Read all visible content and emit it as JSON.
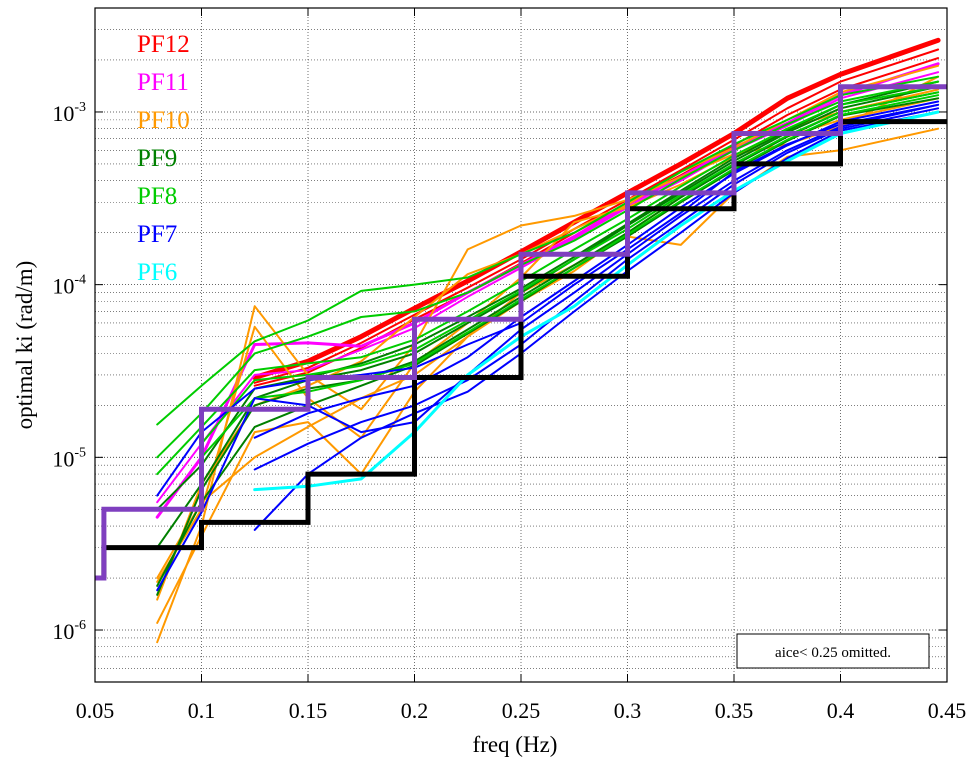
{
  "chart_data": {
    "type": "line",
    "title": "",
    "xlabel": "freq (Hz)",
    "ylabel": "optimal ki (rad/m)",
    "x_scale": "linear",
    "y_scale": "log",
    "xlim": [
      0.05,
      0.45
    ],
    "ylim": [
      5e-07,
      0.004
    ],
    "grid": true,
    "x_ticks": [
      0.05,
      0.1,
      0.15,
      0.2,
      0.25,
      0.3,
      0.35,
      0.4,
      0.45
    ],
    "x_tick_labels": [
      "0.05",
      "0.1",
      "0.15",
      "0.2",
      "0.25",
      "0.3",
      "0.35",
      "0.4",
      "0.45"
    ],
    "y_ticks": [
      1e-06,
      1e-05,
      0.0001,
      0.001
    ],
    "y_tick_labels": [
      {
        "base": "10",
        "exp": "-6"
      },
      {
        "base": "10",
        "exp": "-5"
      },
      {
        "base": "10",
        "exp": "-4"
      },
      {
        "base": "10",
        "exp": "-3"
      }
    ],
    "legend_position": "top-left",
    "legend": [
      {
        "label": "PF12",
        "color": "#ff0000"
      },
      {
        "label": "PF11",
        "color": "#ff00ff"
      },
      {
        "label": "PF10",
        "color": "#ff9900"
      },
      {
        "label": "PF9",
        "color": "#008000"
      },
      {
        "label": "PF8",
        "color": "#00cc00"
      },
      {
        "label": "PF7",
        "color": "#0000ff"
      },
      {
        "label": "PF6",
        "color": "#00ffff"
      }
    ],
    "annotation": "aice< 0.25 omitted.",
    "x": [
      0.0792,
      0.1,
      0.125,
      0.15,
      0.175,
      0.2,
      0.225,
      0.25,
      0.275,
      0.3,
      0.325,
      0.35,
      0.375,
      0.4,
      0.4458
    ],
    "series": [
      {
        "color": "#ff0000",
        "width": 5,
        "values": [
          null,
          null,
          2.9e-05,
          3.6e-05,
          5e-05,
          7.3e-05,
          0.000105,
          0.000155,
          0.00023,
          0.00034,
          0.0005,
          0.00075,
          0.0012,
          0.00165,
          0.0026
        ]
      },
      {
        "color": "#ff0000",
        "width": 2,
        "values": [
          null,
          null,
          2.7e-05,
          3.3e-05,
          4.6e-05,
          6.7e-05,
          9.6e-05,
          0.00014,
          0.00021,
          0.00031,
          0.00046,
          0.00069,
          0.00105,
          0.0015,
          0.0023
        ]
      },
      {
        "color": "#ff0000",
        "width": 2,
        "values": [
          null,
          null,
          2.6e-05,
          3.1e-05,
          4.3e-05,
          6.3e-05,
          9e-05,
          0.000133,
          0.0002,
          0.000295,
          0.00043,
          0.00064,
          0.00096,
          0.00135,
          0.00205
        ]
      },
      {
        "color": "#ff00ff",
        "width": 3,
        "values": [
          4.5e-06,
          1e-05,
          4.5e-05,
          4.6e-05,
          4.4e-05,
          6e-05,
          9e-05,
          0.00013,
          0.00019,
          0.00029,
          0.00042,
          0.00062,
          0.00086,
          0.00125,
          0.0019
        ]
      },
      {
        "color": "#ff00ff",
        "width": 2,
        "values": [
          5.5e-06,
          1.2e-05,
          3e-05,
          3.2e-05,
          4.2e-05,
          5.6e-05,
          8.5e-05,
          0.000125,
          0.000185,
          0.00028,
          0.0004,
          0.0006,
          0.00083,
          0.0012,
          0.0017
        ]
      },
      {
        "color": "#ff9900",
        "width": 2,
        "values": [
          8.5e-07,
          4e-06,
          7.5e-05,
          3e-05,
          1.9e-05,
          4.5e-05,
          0.00016,
          0.00022,
          0.00025,
          0.00031,
          0.00042,
          0.00057,
          0.00065,
          0.00082,
          0.0016
        ]
      },
      {
        "color": "#ff9900",
        "width": 2,
        "values": [
          1.9e-06,
          5e-06,
          5.7e-05,
          2.2e-05,
          1.3e-05,
          3.5e-05,
          6e-05,
          0.00011,
          0.00023,
          0.00028,
          0.00038,
          0.00055,
          0.0008,
          0.001,
          0.00135
        ]
      },
      {
        "color": "#ff9900",
        "width": 2,
        "values": [
          1.1e-06,
          3.5e-06,
          1.4e-05,
          1.6e-05,
          8e-06,
          2.4e-05,
          5e-05,
          9e-05,
          0.00013,
          0.00019,
          0.00017,
          0.00034,
          0.00055,
          0.0006,
          0.0008
        ]
      },
      {
        "color": "#ff9900",
        "width": 2,
        "values": [
          1.5e-06,
          7e-06,
          2e-05,
          2.6e-05,
          3.6e-05,
          6.5e-05,
          0.000115,
          0.00015,
          0.00021,
          0.00029,
          0.00045,
          0.00062,
          0.0009,
          0.0013,
          0.00185
        ]
      },
      {
        "color": "#ff9900",
        "width": 2,
        "values": [
          2e-06,
          5.5e-06,
          1e-05,
          1.5e-05,
          2.2e-05,
          3e-05,
          5e-05,
          8e-05,
          0.00012,
          0.0002,
          0.00032,
          0.0005,
          0.00072,
          0.0009,
          0.0012
        ]
      },
      {
        "color": "#008000",
        "width": 2,
        "values": [
          1.6e-06,
          6.5e-06,
          2e-05,
          2.5e-05,
          2.8e-05,
          3.6e-05,
          5.5e-05,
          8.5e-05,
          0.00013,
          0.0002,
          0.00032,
          0.00049,
          0.00072,
          0.001,
          0.0013
        ]
      },
      {
        "color": "#008000",
        "width": 2,
        "values": [
          1.8e-06,
          5.5e-06,
          1.5e-05,
          2e-05,
          2.6e-05,
          3.4e-05,
          5.2e-05,
          8e-05,
          0.000125,
          0.00019,
          0.0003,
          0.00046,
          0.00068,
          0.00095,
          0.0012
        ]
      },
      {
        "color": "#008000",
        "width": 2,
        "values": [
          3e-06,
          7e-06,
          2.2e-05,
          2.8e-05,
          3.2e-05,
          4e-05,
          6e-05,
          9e-05,
          0.00014,
          0.00022,
          0.00034,
          0.00052,
          0.00076,
          0.00105,
          0.0014
        ]
      },
      {
        "color": "#008000",
        "width": 2,
        "values": [
          5e-06,
          9e-06,
          2.5e-05,
          2.9e-05,
          3.5e-05,
          4.5e-05,
          6.5e-05,
          9.5e-05,
          0.000145,
          0.000225,
          0.00035,
          0.00054,
          0.00078,
          0.0011,
          0.0015
        ]
      },
      {
        "color": "#00cc00",
        "width": 2,
        "values": [
          1.55e-05,
          2.6e-05,
          4.7e-05,
          6.2e-05,
          9.2e-05,
          0.0001,
          0.00011,
          0.00015,
          0.0002,
          0.0003,
          0.00045,
          0.00065,
          0.0009,
          0.00125,
          0.0016
        ]
      },
      {
        "color": "#00cc00",
        "width": 2,
        "values": [
          1e-05,
          1.8e-05,
          4e-05,
          5e-05,
          6.5e-05,
          7e-05,
          9e-05,
          0.00013,
          0.00018,
          0.00027,
          0.00041,
          0.0006,
          0.00085,
          0.00115,
          0.0015
        ]
      },
      {
        "color": "#00cc00",
        "width": 2,
        "values": [
          8e-06,
          1.5e-05,
          3.2e-05,
          3.5e-05,
          3.8e-05,
          4.8e-05,
          7e-05,
          0.000105,
          0.00016,
          0.00024,
          0.00037,
          0.00056,
          0.0008,
          0.0011,
          0.0014
        ]
      },
      {
        "color": "#00cc00",
        "width": 2,
        "values": [
          null,
          1.2e-05,
          2.8e-05,
          3e-05,
          3.4e-05,
          4.2e-05,
          6.2e-05,
          9.2e-05,
          0.00014,
          0.00021,
          0.00033,
          0.0005,
          0.00073,
          0.001,
          0.0013
        ]
      },
      {
        "color": "#00cc00",
        "width": 2,
        "values": [
          null,
          1e-05,
          2.2e-05,
          2.4e-05,
          2.8e-05,
          3.5e-05,
          5.3e-05,
          8.2e-05,
          0.000125,
          0.000195,
          0.000305,
          0.00047,
          0.00069,
          0.00096,
          0.00125
        ]
      },
      {
        "color": "#0000ff",
        "width": 2,
        "values": [
          6e-06,
          1.4e-05,
          2.5e-05,
          2.8e-05,
          3e-05,
          3.3e-05,
          4.5e-05,
          6e-05,
          0.0001,
          0.00016,
          0.00026,
          0.00045,
          0.00065,
          0.00085,
          0.0011
        ]
      },
      {
        "color": "#0000ff",
        "width": 2,
        "values": [
          null,
          null,
          1.3e-05,
          1.8e-05,
          2.2e-05,
          2.6e-05,
          3.8e-05,
          6.5e-05,
          0.000105,
          0.00017,
          0.00028,
          0.00044,
          0.00064,
          0.00088,
          0.00115
        ]
      },
      {
        "color": "#0000ff",
        "width": 2,
        "values": [
          null,
          null,
          8.5e-06,
          1.2e-05,
          1.6e-05,
          2e-05,
          2.8e-05,
          4.5e-05,
          8e-05,
          0.00014,
          0.00023,
          0.00038,
          0.00058,
          0.0008,
          0.00105
        ]
      },
      {
        "color": "#0000ff",
        "width": 2,
        "values": [
          null,
          null,
          3.8e-06,
          8e-06,
          1.3e-05,
          1.8e-05,
          2.4e-05,
          4e-05,
          7e-05,
          0.00012,
          0.0002,
          0.00034,
          0.00054,
          0.00078,
          0.001
        ]
      },
      {
        "color": "#0000ff",
        "width": 2,
        "values": [
          1.7e-06,
          4.8e-06,
          2.2e-05,
          2e-05,
          1.4e-05,
          1.6e-05,
          3e-05,
          5.5e-05,
          9e-05,
          0.00015,
          0.00025,
          0.0004,
          0.0006,
          0.00082,
          0.0011
        ]
      },
      {
        "color": "#00ffff",
        "width": 3,
        "values": [
          null,
          null,
          6.5e-06,
          6.8e-06,
          7.5e-06,
          1.4e-05,
          3e-05,
          5e-05,
          7.5e-05,
          0.00013,
          0.00022,
          0.00035,
          0.00052,
          0.00075,
          0.001
        ]
      }
    ],
    "step_lines": [
      {
        "color": "#000000",
        "width": 5,
        "x": [
          0.0542,
          0.0542,
          0.1,
          0.1,
          0.15,
          0.15,
          0.2,
          0.2,
          0.25,
          0.25,
          0.3,
          0.3,
          0.35,
          0.35,
          0.4,
          0.4,
          0.45
        ],
        "y": [
          2e-06,
          3e-06,
          3e-06,
          4.2e-06,
          4.2e-06,
          8e-06,
          8e-06,
          2.9e-05,
          2.9e-05,
          0.000112,
          0.000112,
          0.000275,
          0.000275,
          0.0005,
          0.0005,
          0.00088,
          0.00088
        ]
      },
      {
        "color": "#7f3fbf",
        "width": 5,
        "x": [
          0.05,
          0.0542,
          0.0542,
          0.1,
          0.1,
          0.15,
          0.15,
          0.2,
          0.2,
          0.25,
          0.25,
          0.3,
          0.3,
          0.35,
          0.35,
          0.4,
          0.4,
          0.45
        ],
        "y": [
          2e-06,
          2e-06,
          5e-06,
          5e-06,
          1.9e-05,
          1.9e-05,
          2.9e-05,
          2.9e-05,
          6.3e-05,
          6.3e-05,
          0.00015,
          0.00015,
          0.00034,
          0.00034,
          0.00075,
          0.00075,
          0.0014,
          0.0014
        ]
      }
    ]
  }
}
